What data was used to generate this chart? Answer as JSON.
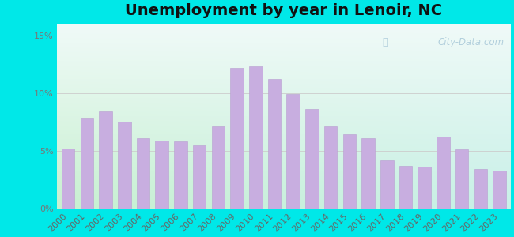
{
  "title": "Unemployment by year in Lenoir, NC",
  "years": [
    2000,
    2001,
    2002,
    2003,
    2004,
    2005,
    2006,
    2007,
    2008,
    2009,
    2010,
    2011,
    2012,
    2013,
    2014,
    2015,
    2016,
    2017,
    2018,
    2019,
    2020,
    2021,
    2022,
    2023
  ],
  "values": [
    5.2,
    7.9,
    8.4,
    7.5,
    6.1,
    5.9,
    5.8,
    5.5,
    7.1,
    12.2,
    12.3,
    11.2,
    9.9,
    8.6,
    7.1,
    6.4,
    6.1,
    4.2,
    3.7,
    3.6,
    6.2,
    5.1,
    3.4,
    3.3
  ],
  "bar_color": "#c8aee0",
  "bar_edge_color": "#b89ed0",
  "ytick_labels": [
    "0%",
    "5%",
    "10%",
    "15%"
  ],
  "ylim": [
    0,
    16
  ],
  "bg_outer": "#00e8e8",
  "bg_grad_topleft": "#e8f8f0",
  "bg_grad_bottomright": "#c8f0f0",
  "bg_grad_bottomleft": "#c0f0d0",
  "grid_color": "#cccccc",
  "watermark_text": "City-Data.com",
  "watermark_color": "#a8c8d8",
  "title_fontsize": 14,
  "tick_fontsize": 8,
  "ytick_color": "#888888"
}
